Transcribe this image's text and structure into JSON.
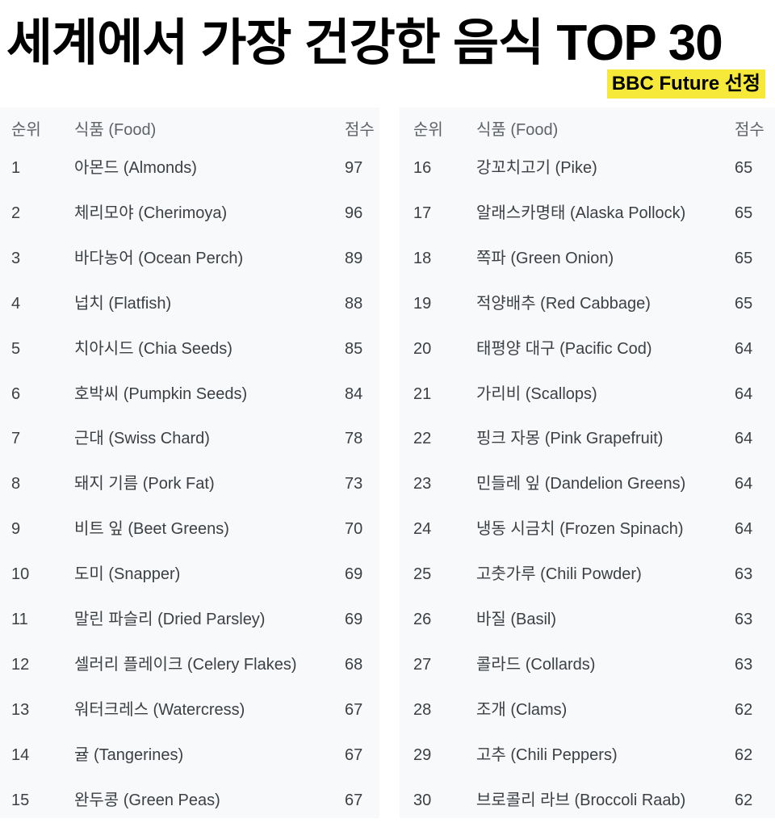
{
  "title": "세계에서 가장 건강한 음식 TOP 30",
  "badge": "BBC Future 선정",
  "colors": {
    "badge_bg": "#f7e93a",
    "table_bg": "#f8f9fb",
    "text": "#3c4043"
  },
  "headers": {
    "rank": "순위",
    "food": "식품 (Food)",
    "score": "점수"
  },
  "left_rows": [
    {
      "rank": "1",
      "food": "아몬드 (Almonds)",
      "score": "97"
    },
    {
      "rank": "2",
      "food": "체리모야 (Cherimoya)",
      "score": "96"
    },
    {
      "rank": "3",
      "food": "바다농어 (Ocean Perch)",
      "score": "89"
    },
    {
      "rank": "4",
      "food": "넙치 (Flatfish)",
      "score": "88"
    },
    {
      "rank": "5",
      "food": "치아시드 (Chia Seeds)",
      "score": "85"
    },
    {
      "rank": "6",
      "food": "호박씨 (Pumpkin Seeds)",
      "score": "84"
    },
    {
      "rank": "7",
      "food": "근대 (Swiss Chard)",
      "score": "78"
    },
    {
      "rank": "8",
      "food": "돼지 기름 (Pork Fat)",
      "score": "73"
    },
    {
      "rank": "9",
      "food": "비트 잎 (Beet Greens)",
      "score": "70"
    },
    {
      "rank": "10",
      "food": "도미 (Snapper)",
      "score": "69"
    },
    {
      "rank": "11",
      "food": "말린 파슬리 (Dried Parsley)",
      "score": "69"
    },
    {
      "rank": "12",
      "food": "셀러리 플레이크 (Celery Flakes)",
      "score": "68"
    },
    {
      "rank": "13",
      "food": "워터크레스 (Watercress)",
      "score": "67"
    },
    {
      "rank": "14",
      "food": "귤 (Tangerines)",
      "score": "67"
    },
    {
      "rank": "15",
      "food": "완두콩 (Green Peas)",
      "score": "67"
    }
  ],
  "right_rows": [
    {
      "rank": "16",
      "food": "강꼬치고기 (Pike)",
      "score": "65"
    },
    {
      "rank": "17",
      "food": "알래스카명태 (Alaska Pollock)",
      "score": "65"
    },
    {
      "rank": "18",
      "food": "쪽파 (Green Onion)",
      "score": "65"
    },
    {
      "rank": "19",
      "food": "적양배추 (Red Cabbage)",
      "score": "65"
    },
    {
      "rank": "20",
      "food": "태평양 대구 (Pacific Cod)",
      "score": "64"
    },
    {
      "rank": "21",
      "food": "가리비 (Scallops)",
      "score": "64"
    },
    {
      "rank": "22",
      "food": "핑크 자몽 (Pink Grapefruit)",
      "score": "64"
    },
    {
      "rank": "23",
      "food": "민들레 잎 (Dandelion Greens)",
      "score": "64"
    },
    {
      "rank": "24",
      "food": "냉동 시금치 (Frozen Spinach)",
      "score": "64"
    },
    {
      "rank": "25",
      "food": "고춧가루 (Chili Powder)",
      "score": "63"
    },
    {
      "rank": "26",
      "food": "바질 (Basil)",
      "score": "63"
    },
    {
      "rank": "27",
      "food": "콜라드 (Collards)",
      "score": "63"
    },
    {
      "rank": "28",
      "food": "조개 (Clams)",
      "score": "62"
    },
    {
      "rank": "29",
      "food": "고추 (Chili Peppers)",
      "score": "62"
    },
    {
      "rank": "30",
      "food": "브로콜리 라브 (Broccoli Raab)",
      "score": "62"
    }
  ]
}
